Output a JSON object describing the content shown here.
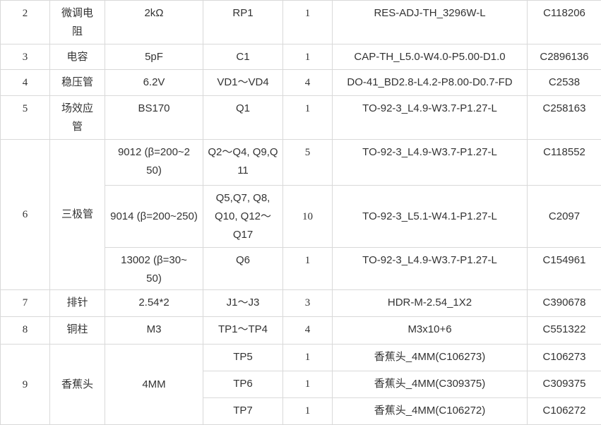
{
  "rows": [
    {
      "no": "2",
      "name": "微调电阻",
      "value": "2kΩ",
      "ref": "RP1",
      "qty": "1",
      "package": "RES-ADJ-TH_3296W-L",
      "part": "C118206"
    },
    {
      "no": "3",
      "name": "电容",
      "value": "5pF",
      "ref": "C1",
      "qty": "1",
      "package": "CAP-TH_L5.0-W4.0-P5.00-D1.0",
      "part": "C2896136"
    },
    {
      "no": "4",
      "name": "稳压管",
      "value": "6.2V",
      "ref": "VD1～VD4",
      "qty": "4",
      "package": "DO-41_BD2.8-L4.2-P8.00-D0.7-FD",
      "part": "C2538"
    },
    {
      "no": "5",
      "name": "场效应管",
      "value": "BS170",
      "ref": "Q1",
      "qty": "1",
      "package": "TO-92-3_L4.9-W3.7-P1.27-L",
      "part": "C258163"
    },
    {
      "no": "6",
      "name": "三极管",
      "sub": [
        {
          "value": "9012 (β=200~250)",
          "ref": "Q2～Q4, Q9,Q11",
          "qty": "5",
          "package": "TO-92-3_L4.9-W3.7-P1.27-L",
          "part": "C118552"
        },
        {
          "value": "9014 (β=200~250)",
          "ref": "Q5,Q7, Q8,Q10, Q12～Q17",
          "qty": "10",
          "package": "TO-92-3_L5.1-W4.1-P1.27-L",
          "part": "C2097"
        },
        {
          "value": "13002 (β=30~50)",
          "ref": "Q6",
          "qty": "1",
          "package": "TO-92-3_L4.9-W3.7-P1.27-L",
          "part": "C154961"
        }
      ]
    },
    {
      "no": "7",
      "name": "排针",
      "value": "2.54*2",
      "ref": "J1～J3",
      "qty": "3",
      "package": "HDR-M-2.54_1X2",
      "part": "C390678"
    },
    {
      "no": "8",
      "name": "铜柱",
      "value": "M3",
      "ref": "TP1～TP4",
      "qty": "4",
      "package": "M3x10+6",
      "part": "C551322"
    },
    {
      "no": "9",
      "name": "香蕉头",
      "value": "4MM",
      "sub": [
        {
          "ref": "TP5",
          "qty": "1",
          "package": "香蕉头_4MM(C106273)",
          "part": "C106273"
        },
        {
          "ref": "TP6",
          "qty": "1",
          "package": "香蕉头_4MM(C309375)",
          "part": "C309375"
        },
        {
          "ref": "TP7",
          "qty": "1",
          "package": "香蕉头_4MM(C106272)",
          "part": "C106272"
        }
      ]
    }
  ]
}
